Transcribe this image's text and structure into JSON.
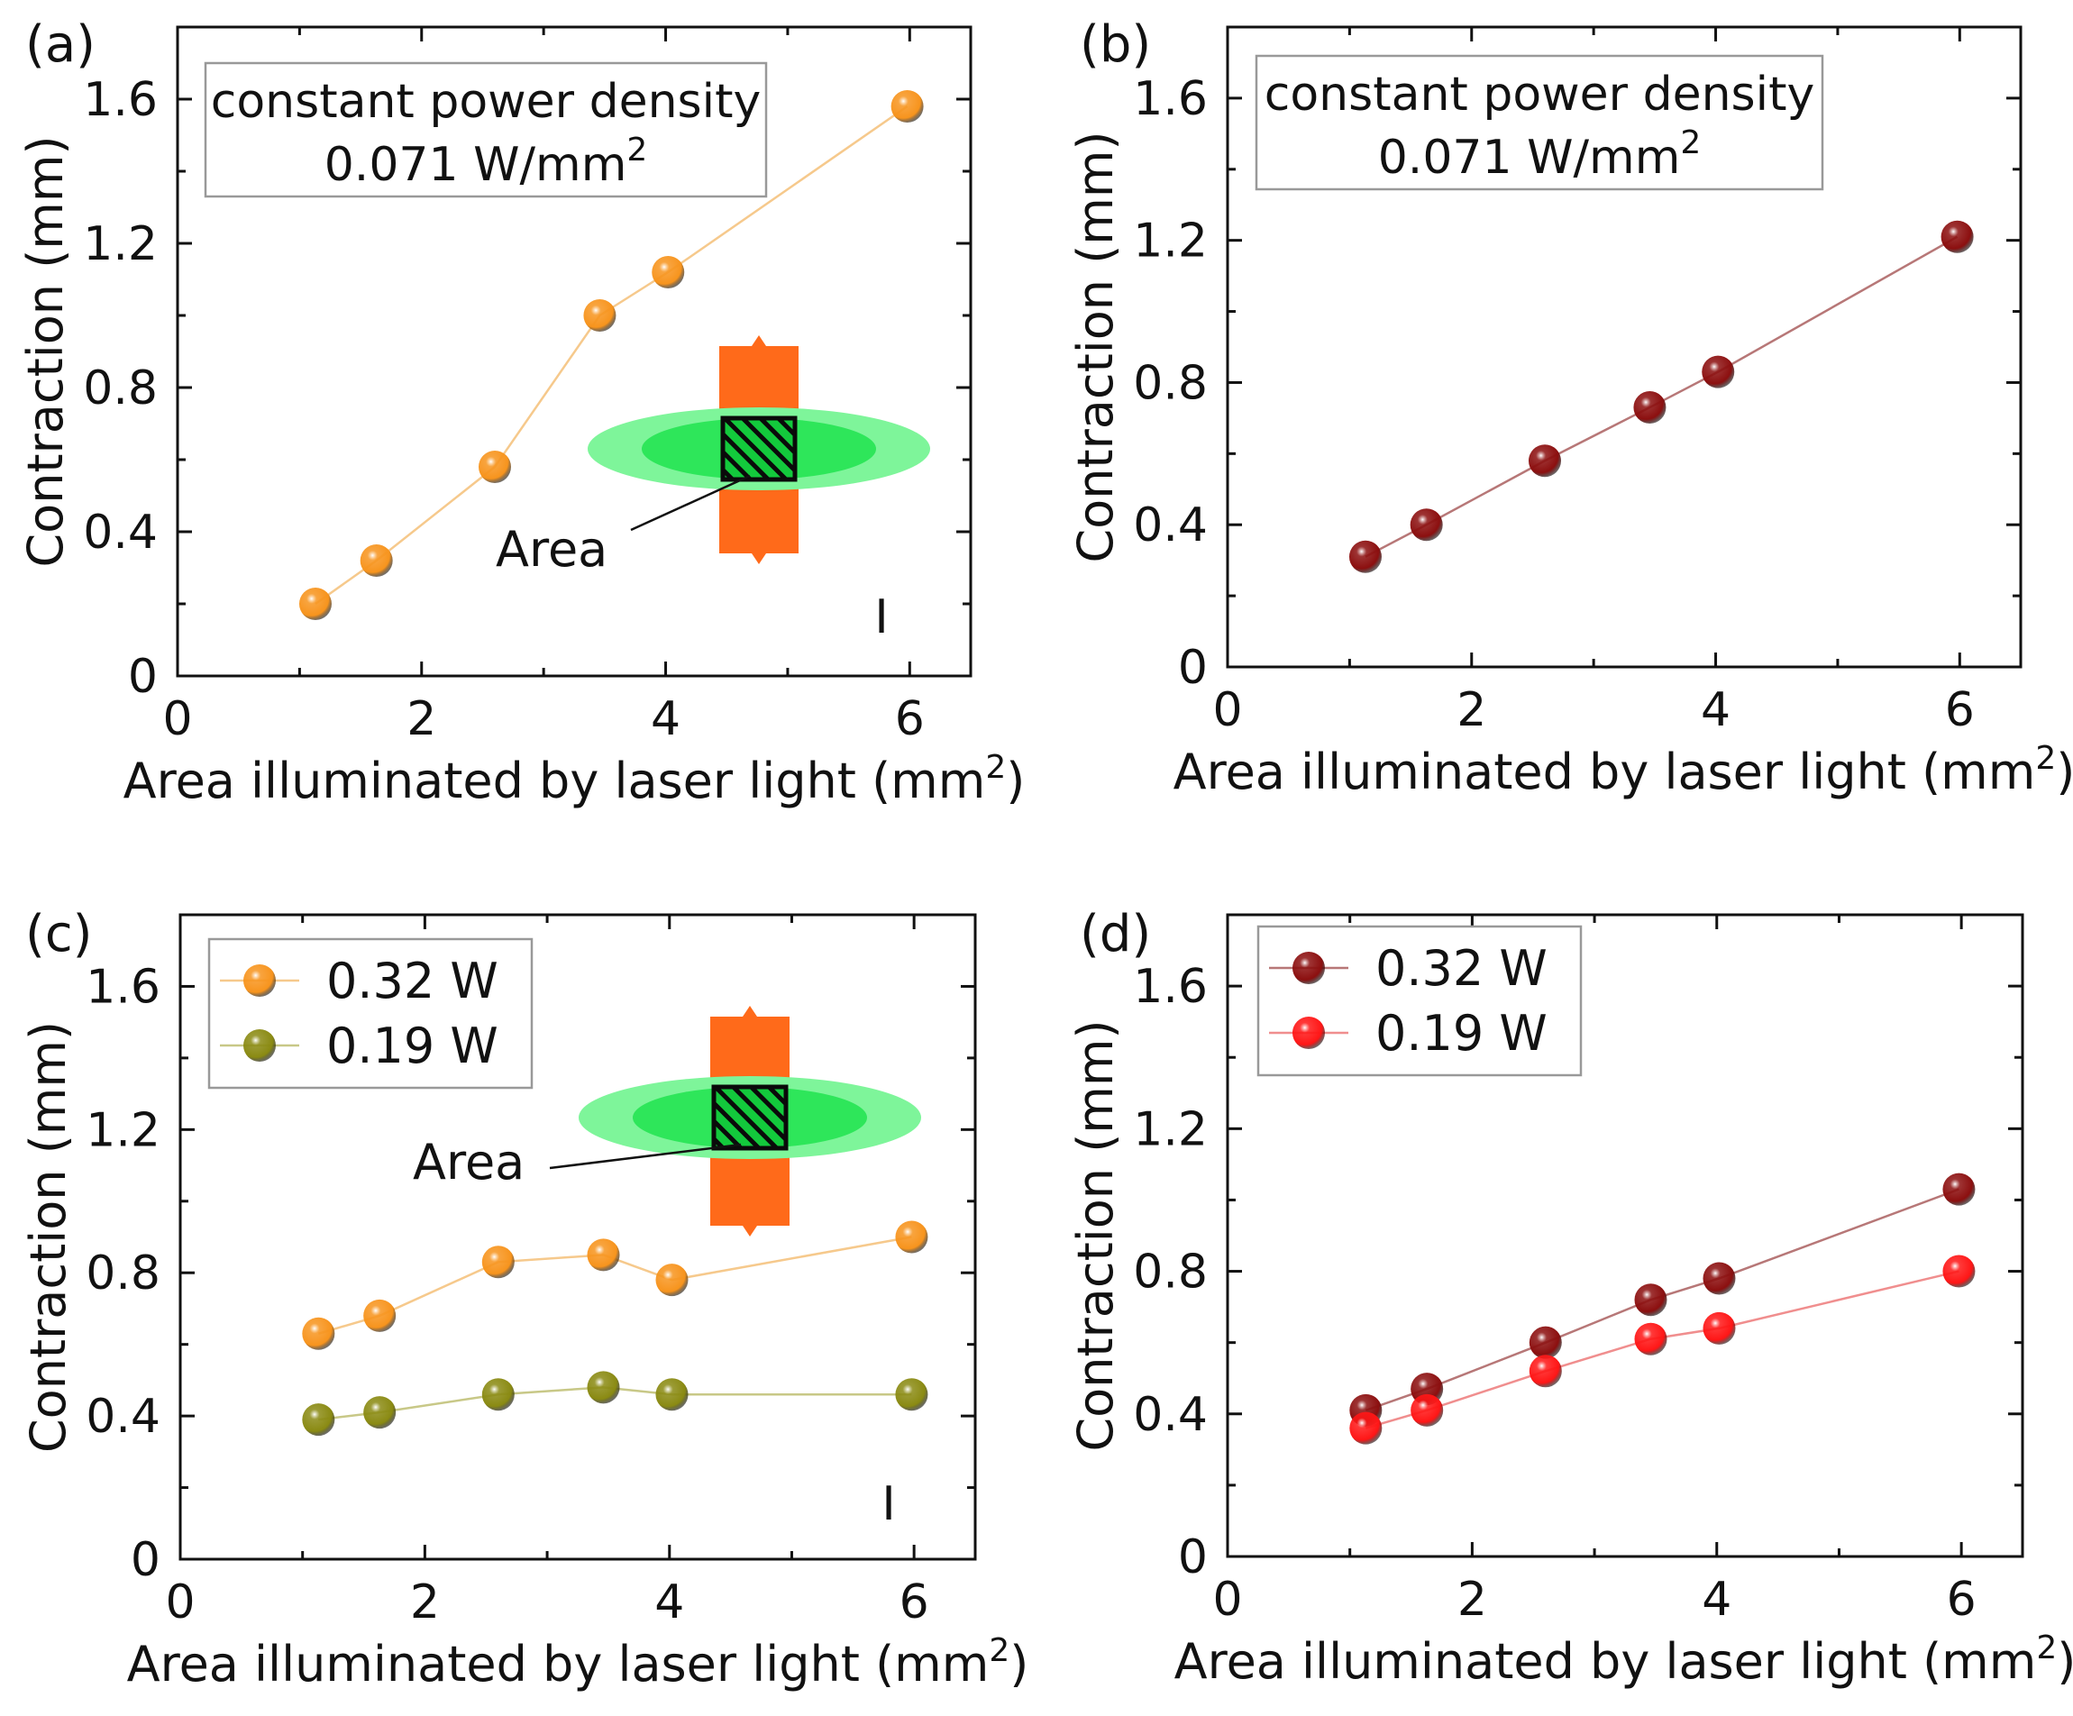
{
  "figure": {
    "panels": [
      "(a)",
      "(b)",
      "(c)",
      "(d)"
    ]
  },
  "colors": {
    "orange": "#f7941d",
    "orange_line": "#f6c98c",
    "olive": "#8a8a12",
    "olive_line": "#c8c887",
    "darkred": "#8c0f0f",
    "darkred_line": "#b77777",
    "red": "#ff1616",
    "red_line": "#f08e8e",
    "green_outer": "#7ef59a",
    "green_mid": "#2ee65a",
    "green_inner": "#13c93c",
    "strip": "#ff6a1a"
  },
  "annotations": {
    "power_density_line1": "constant power density",
    "power_density_line2": "0.071 W/mm",
    "power_density_sup": "2",
    "area_label": "Area",
    "ibeam_glyph": "I"
  },
  "chart_data": [
    {
      "panel": "(a)",
      "type": "line",
      "xlabel": "Area illuminated by laser light (mm",
      "xlabel_sup": "2",
      "xlabel_close": ")",
      "ylabel": "Contraction (mm)",
      "xlim": [
        0,
        6.5
      ],
      "ylim": [
        0,
        1.8
      ],
      "xticks": [
        0,
        2,
        4,
        6
      ],
      "yticks": [
        0,
        0.4,
        0.8,
        1.2,
        1.6
      ],
      "ytick_labels": [
        "0",
        "0.4",
        "0.8",
        "1.2",
        "1.6"
      ],
      "series": [
        {
          "name": "constant power density 0.071 W/mm2",
          "color_key": "orange",
          "x": [
            1.13,
            1.63,
            2.6,
            3.46,
            4.02,
            5.98
          ],
          "y": [
            0.2,
            0.32,
            0.58,
            1.0,
            1.12,
            1.58
          ]
        }
      ]
    },
    {
      "panel": "(b)",
      "type": "line",
      "xlabel": "Area illuminated by laser light (mm",
      "xlabel_sup": "2",
      "xlabel_close": ")",
      "ylabel": "Contraction (mm)",
      "xlim": [
        0,
        6.5
      ],
      "ylim": [
        0,
        1.8
      ],
      "xticks": [
        0,
        2,
        4,
        6
      ],
      "yticks": [
        0,
        0.4,
        0.8,
        1.2,
        1.6
      ],
      "ytick_labels": [
        "0",
        "0.4",
        "0.8",
        "1.2",
        "1.6"
      ],
      "series": [
        {
          "name": "constant power density 0.071 W/mm2",
          "color_key": "darkred",
          "x": [
            1.13,
            1.63,
            2.6,
            3.46,
            4.02,
            5.98
          ],
          "y": [
            0.31,
            0.4,
            0.58,
            0.73,
            0.83,
            1.21
          ]
        }
      ]
    },
    {
      "panel": "(c)",
      "type": "line",
      "xlabel": "Area illuminated by laser light (mm",
      "xlabel_sup": "2",
      "xlabel_close": ")",
      "ylabel": "Contraction (mm)",
      "xlim": [
        0,
        6.5
      ],
      "ylim": [
        0,
        1.8
      ],
      "xticks": [
        0,
        2,
        4,
        6
      ],
      "yticks": [
        0,
        0.4,
        0.8,
        1.2,
        1.6
      ],
      "ytick_labels": [
        "0",
        "0.4",
        "0.8",
        "1.2",
        "1.6"
      ],
      "series": [
        {
          "name": "0.32 W",
          "color_key": "orange",
          "x": [
            1.13,
            1.63,
            2.6,
            3.46,
            4.02,
            5.98
          ],
          "y": [
            0.63,
            0.68,
            0.83,
            0.85,
            0.78,
            0.9
          ]
        },
        {
          "name": "0.19 W",
          "color_key": "olive",
          "x": [
            1.13,
            1.63,
            2.6,
            3.46,
            4.02,
            5.98
          ],
          "y": [
            0.39,
            0.41,
            0.46,
            0.48,
            0.46,
            0.46
          ]
        }
      ]
    },
    {
      "panel": "(d)",
      "type": "line",
      "xlabel": "Area illuminated by laser light (mm",
      "xlabel_sup": "2",
      "xlabel_close": ")",
      "ylabel": "Contraction (mm)",
      "xlim": [
        0,
        6.5
      ],
      "ylim": [
        0,
        1.8
      ],
      "xticks": [
        0,
        2,
        4,
        6
      ],
      "yticks": [
        0,
        0.4,
        0.8,
        1.2,
        1.6
      ],
      "ytick_labels": [
        "0",
        "0.4",
        "0.8",
        "1.2",
        "1.6"
      ],
      "series": [
        {
          "name": "0.32 W",
          "color_key": "darkred",
          "x": [
            1.13,
            1.63,
            2.6,
            3.46,
            4.02,
            5.98
          ],
          "y": [
            0.41,
            0.47,
            0.6,
            0.72,
            0.78,
            1.03
          ]
        },
        {
          "name": "0.19 W",
          "color_key": "red",
          "x": [
            1.13,
            1.63,
            2.6,
            3.46,
            4.02,
            5.98
          ],
          "y": [
            0.36,
            0.41,
            0.52,
            0.61,
            0.64,
            0.8
          ]
        }
      ]
    }
  ]
}
